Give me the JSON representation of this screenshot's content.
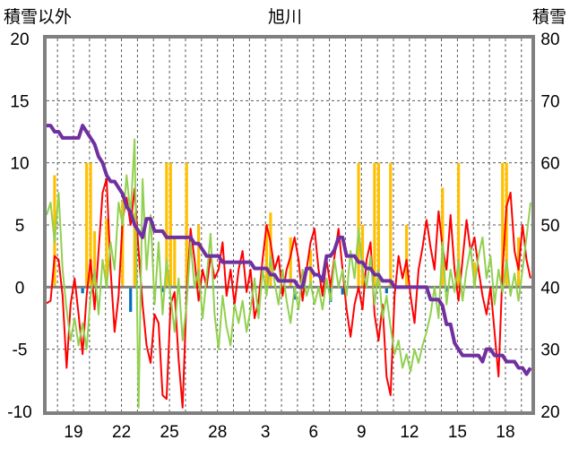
{
  "chart_data": {
    "type": "line",
    "title": "旭川",
    "ylabel": "積雪以外",
    "y2label": "積雪",
    "ylim": [
      -10,
      20
    ],
    "y2lim": [
      20,
      80
    ],
    "yticks": [
      20,
      15,
      10,
      5,
      0,
      -5,
      -10
    ],
    "y2ticks": [
      80,
      70,
      60,
      50,
      40,
      30,
      20
    ],
    "xticks": [
      "19",
      "22",
      "25",
      "28",
      "3",
      "6",
      "9",
      "12",
      "15",
      "18"
    ],
    "grid": true,
    "colors": {
      "border": "#808080",
      "zero_line": "#808080",
      "grid": "#595959"
    },
    "series": [
      {
        "type": "bar",
        "axis": "left",
        "color": "#ffc000",
        "values": [
          0,
          0,
          9,
          0,
          0,
          0,
          0,
          0,
          0,
          0,
          10,
          10,
          4.5,
          0,
          0,
          5.5,
          0,
          0,
          0,
          7,
          0,
          0,
          6,
          0,
          0,
          0,
          0,
          0,
          0,
          0,
          10,
          10,
          4,
          0,
          0,
          10,
          0,
          0,
          5,
          0,
          0,
          0,
          0,
          0,
          0,
          0,
          0,
          0,
          0,
          0,
          0,
          0,
          0,
          0,
          0,
          5,
          6,
          0,
          0,
          0,
          0,
          4,
          0,
          0,
          0,
          0,
          3,
          0,
          0,
          0,
          0,
          0,
          0,
          0,
          0,
          0,
          0,
          0,
          10,
          5,
          0,
          0,
          10,
          10,
          0,
          0,
          10,
          0,
          0,
          0,
          5,
          0,
          0,
          0,
          0,
          0,
          0,
          0,
          0,
          8,
          0,
          0,
          0,
          10,
          0,
          0,
          0,
          2,
          0,
          0,
          0,
          0,
          0,
          0,
          10,
          10,
          0,
          0,
          4,
          0,
          0,
          0
        ]
      },
      {
        "type": "bar",
        "axis": "left",
        "color": "#0070c0",
        "values": [
          0,
          0,
          0,
          0,
          0,
          0,
          0,
          0,
          0,
          -0.5,
          0,
          0,
          0,
          0,
          0,
          0,
          0,
          0,
          0,
          0,
          0,
          -2.0,
          0,
          0,
          0,
          0,
          0,
          0,
          0,
          -0.4,
          0,
          0,
          0,
          0,
          0,
          0,
          0,
          0,
          0,
          0,
          0,
          0,
          0,
          0,
          0,
          0,
          0,
          0,
          0,
          0,
          0,
          0,
          0,
          0,
          0,
          0,
          0,
          0,
          0,
          0,
          0,
          0,
          -1.0,
          0,
          0,
          0,
          0,
          0,
          0,
          0,
          0,
          -1.2,
          0,
          0,
          -0.6,
          0,
          0,
          0,
          0,
          0,
          0,
          0,
          0,
          0,
          0,
          -0.5,
          0,
          0,
          0,
          0,
          0,
          0,
          0,
          0,
          0,
          0,
          0,
          0,
          0,
          0,
          -0.4,
          0,
          0,
          0,
          0,
          0,
          0,
          0,
          0,
          0,
          0,
          0,
          0,
          0,
          0,
          0,
          0,
          0,
          0,
          0,
          0,
          0
        ]
      },
      {
        "type": "line",
        "axis": "left",
        "color": "#ff0000",
        "values": [
          -1.3,
          -1.1,
          2.5,
          2.2,
          -0.7,
          -6.5,
          -1.4,
          0.7,
          -2.2,
          -5.4,
          -0.7,
          2.2,
          -1.8,
          2.9,
          7.6,
          8.7,
          1.4,
          -3.6,
          -0.7,
          5.4,
          7.2,
          5.0,
          7.9,
          2.9,
          -1.4,
          -4.7,
          -6.1,
          -2.2,
          -2.9,
          -8.7,
          -9.0,
          -1.4,
          -0.4,
          -5.8,
          -9.7,
          -0.7,
          4.7,
          2.2,
          -1.1,
          1.4,
          0,
          2.5,
          0.7,
          1.4,
          3.6,
          -0.7,
          1.4,
          -1.4,
          1.4,
          2.9,
          -0.4,
          1.4,
          -2.5,
          -1.1,
          2.2,
          5.0,
          3.6,
          1.4,
          2.5,
          -0.7,
          1.4,
          2.5,
          4.0,
          2.2,
          -1.1,
          1.4,
          3.6,
          4.7,
          1.4,
          -0.7,
          2.2,
          0,
          2.5,
          4.7,
          1.4,
          -1.8,
          -4.0,
          -1.4,
          0,
          -1.8,
          2.2,
          3.6,
          -2.2,
          -4.3,
          -1.4,
          -7.2,
          -8.7,
          -0.7,
          2.5,
          0.7,
          2.2,
          -0.7,
          -2.9,
          1.4,
          3.2,
          5.4,
          3.2,
          1.4,
          6.1,
          3.2,
          1.4,
          5.8,
          1.4,
          -1.1,
          2.2,
          5.4,
          2.9,
          4.0,
          1.4,
          -0.7,
          -2.2,
          0,
          -3.6,
          -7.2,
          1.4,
          6.5,
          7.6,
          2.9,
          1.4,
          5.0,
          2.2,
          0.7
        ]
      },
      {
        "type": "line",
        "axis": "left",
        "color": "#92d050",
        "values": [
          5.8,
          6.8,
          3.6,
          7.6,
          1.4,
          -1.8,
          -4.3,
          -2.5,
          -4.7,
          -2.9,
          -5.0,
          -0.7,
          1.4,
          -2.2,
          2.2,
          0,
          3.6,
          1.4,
          6.8,
          5.0,
          9.0,
          5.8,
          11.9,
          -9.7,
          8.7,
          1.4,
          5.8,
          -1.4,
          3.6,
          -2.2,
          2.2,
          -0.7,
          -3.6,
          0.7,
          -4.3,
          -1.4,
          3.6,
          0,
          1.4,
          -2.5,
          0.7,
          4.3,
          -2.2,
          -5.0,
          -0.7,
          -3.2,
          -4.7,
          -1.4,
          -2.9,
          -1.1,
          -3.6,
          -1.8,
          0.7,
          -2.5,
          1.4,
          -0.7,
          2.5,
          0.4,
          -1.4,
          1.4,
          -1.1,
          -2.9,
          0,
          -1.8,
          1.4,
          -0.7,
          0.4,
          -1.4,
          0,
          -1.8,
          0.7,
          -1.1,
          2.2,
          0,
          1.4,
          -0.7,
          2.9,
          0.7,
          4.7,
          1.4,
          0,
          2.5,
          -1.4,
          1.4,
          -2.5,
          -0.7,
          -3.2,
          -5.4,
          -4.3,
          -6.5,
          -5.4,
          -6.8,
          -5.0,
          -6.1,
          -4.7,
          -3.6,
          -2.2,
          0,
          -2.5,
          3.6,
          -1.4,
          1.4,
          -0.4,
          2.2,
          -1.1,
          1.4,
          3.2,
          0,
          2.5,
          4.0,
          0.7,
          2.5,
          -1.4,
          1.4,
          -0.4,
          2.2,
          -0.7,
          1.1,
          -1.1,
          1.4,
          4.0,
          6.8
        ]
      },
      {
        "type": "line",
        "axis": "right",
        "color": "#7030a0",
        "values": [
          66,
          66,
          65,
          65,
          64,
          64,
          64,
          64,
          64,
          66,
          65,
          64,
          63,
          61,
          60,
          58,
          57,
          57,
          56,
          55,
          53,
          52,
          50,
          49,
          48,
          51,
          51,
          49,
          49,
          49,
          48,
          48,
          48,
          48,
          48,
          48,
          48,
          47,
          47,
          46,
          45,
          45,
          45,
          45,
          44,
          44,
          44,
          44,
          44,
          44,
          44,
          44,
          43,
          43,
          43,
          43,
          42,
          42,
          41,
          41,
          41,
          41,
          41,
          40,
          40,
          43,
          43,
          42,
          42,
          41,
          45,
          45,
          46,
          48,
          48,
          45,
          45,
          45,
          44,
          44,
          43,
          43,
          42,
          42,
          41,
          41,
          41,
          40,
          40,
          40,
          40,
          40,
          40,
          40,
          40,
          40,
          38,
          38,
          38,
          37,
          34,
          34,
          31,
          30,
          29,
          29,
          29,
          29,
          29,
          28,
          30,
          30,
          29,
          29,
          29,
          28,
          28,
          28,
          27,
          27,
          26,
          27
        ]
      }
    ]
  }
}
